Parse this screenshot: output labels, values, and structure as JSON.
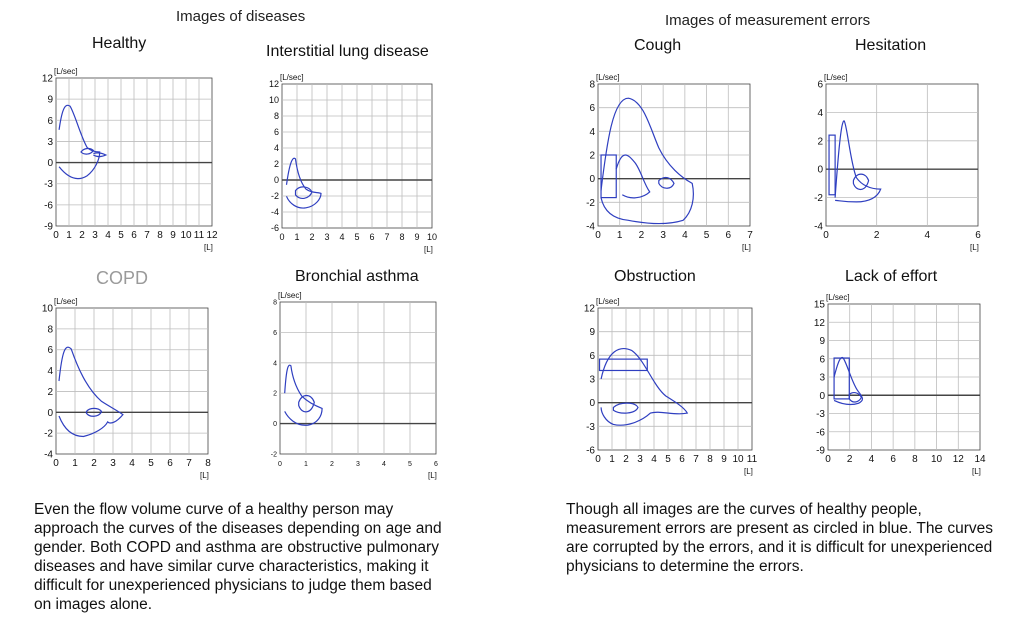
{
  "headings": {
    "diseases": "Images of diseases",
    "errors": "Images of measurement errors"
  },
  "panels": [
    {
      "id": "healthy",
      "title": "Healthy",
      "y_unit": "[L/sec]",
      "x_unit": "[L]",
      "y_ticks": [
        "12",
        "9",
        "6",
        "3",
        "0",
        "-3",
        "-6",
        "-9"
      ],
      "x_ticks": [
        "0",
        "1",
        "2",
        "3",
        "4",
        "5",
        "6",
        "7",
        "8",
        "9",
        "10",
        "11",
        "12"
      ]
    },
    {
      "id": "ild",
      "title": "Interstitial lung disease",
      "y_unit": "[L/sec]",
      "x_unit": "[L]",
      "y_ticks": [
        "12",
        "10",
        "8",
        "6",
        "4",
        "2",
        "0",
        "-2",
        "-4",
        "-6"
      ],
      "x_ticks": [
        "0",
        "1",
        "2",
        "3",
        "4",
        "5",
        "6",
        "7",
        "8",
        "9",
        "10"
      ]
    },
    {
      "id": "copd",
      "title": "COPD",
      "y_unit": "[L/sec]",
      "x_unit": "[L]",
      "y_ticks": [
        "10",
        "8",
        "6",
        "4",
        "2",
        "0",
        "-2",
        "-4"
      ],
      "x_ticks": [
        "0",
        "1",
        "2",
        "3",
        "4",
        "5",
        "6",
        "7",
        "8"
      ]
    },
    {
      "id": "asthma",
      "title": "Bronchial asthma",
      "y_unit": "[L/sec]",
      "x_unit": "[L]",
      "y_ticks": [
        "8",
        "6",
        "4",
        "2",
        "0",
        "-2"
      ],
      "x_ticks": [
        "0",
        "1",
        "2",
        "3",
        "4",
        "5",
        "6"
      ]
    },
    {
      "id": "cough",
      "title": "Cough",
      "y_unit": "[L/sec]",
      "x_unit": "[L]",
      "y_ticks": [
        "8",
        "6",
        "4",
        "2",
        "0",
        "-2",
        "-4"
      ],
      "x_ticks": [
        "0",
        "1",
        "2",
        "3",
        "4",
        "5",
        "6",
        "7"
      ]
    },
    {
      "id": "hesitation",
      "title": "Hesitation",
      "y_unit": "[L/sec]",
      "x_unit": "[L]",
      "y_ticks": [
        "6",
        "4",
        "2",
        "0",
        "-2",
        "-4"
      ],
      "x_ticks": [
        "0",
        "2",
        "4",
        "6"
      ]
    },
    {
      "id": "obstruction",
      "title": "Obstruction",
      "y_unit": "[L/sec]",
      "x_unit": "[L]",
      "y_ticks": [
        "12",
        "9",
        "6",
        "3",
        "0",
        "-3",
        "-6"
      ],
      "x_ticks": [
        "0",
        "1",
        "2",
        "3",
        "4",
        "5",
        "6",
        "7",
        "8",
        "9",
        "10",
        "11"
      ]
    },
    {
      "id": "lack",
      "title": "Lack of effort",
      "y_unit": "[L/sec]",
      "x_unit": "[L]",
      "y_ticks": [
        "15",
        "12",
        "9",
        "6",
        "3",
        "0",
        "-3",
        "-6",
        "-9"
      ],
      "x_ticks": [
        "0",
        "2",
        "4",
        "6",
        "8",
        "10",
        "12",
        "14"
      ]
    }
  ],
  "captions": {
    "diseases": "Even the flow volume curve of a healthy person may approach the curves of the diseases depending on age and gender. Both COPD and asthma are obstructive pulmonary diseases and have similar curve characteristics, making it difficult for unexperienced physicians to judge them based on images alone.",
    "errors": "Though all images are the curves of healthy people, measurement errors are present as circled in blue. The curves are corrupted by the errors, and it is difficult for unexperienced physicians to determine the errors."
  },
  "colors": {
    "curve": "#2f3fc0",
    "grid": "#bdbdbd",
    "axis": "#444444",
    "text": "#111111",
    "muted": "#9a9a9a"
  }
}
